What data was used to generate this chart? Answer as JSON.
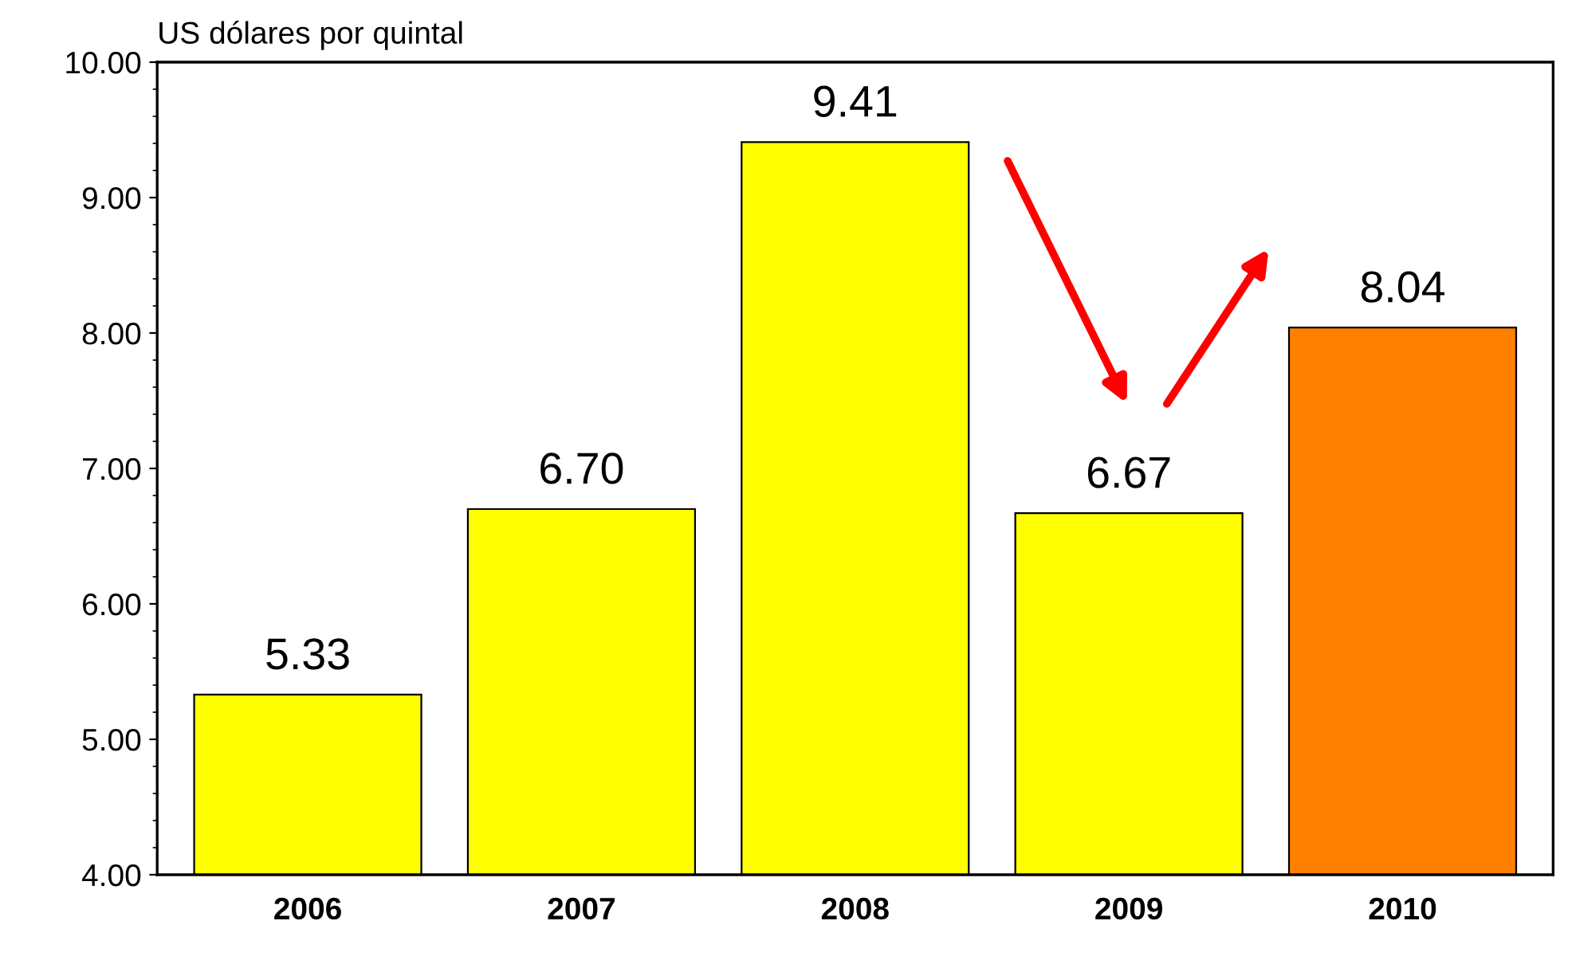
{
  "chart_data": {
    "type": "bar",
    "ylabel": "US dólares por quintal",
    "categories": [
      "2006",
      "2007",
      "2008",
      "2009",
      "2010"
    ],
    "values": [
      5.33,
      6.7,
      9.41,
      6.67,
      8.04
    ],
    "colors": [
      "#ffff00",
      "#ffff00",
      "#ffff00",
      "#ffff00",
      "#ff8000"
    ],
    "value_labels": [
      "5.33",
      "6.70",
      "9.41",
      "6.67",
      "8.04"
    ],
    "ylim": [
      4,
      10
    ],
    "yticks": [
      {
        "value": 4,
        "label": "4.00"
      },
      {
        "value": 5,
        "label": "5.00"
      },
      {
        "value": 6,
        "label": "6.00"
      },
      {
        "value": 7,
        "label": "7.00"
      },
      {
        "value": 8,
        "label": "8.00"
      },
      {
        "value": 9,
        "label": "9.00"
      },
      {
        "value": 10,
        "label": "10.00"
      }
    ],
    "grid": false,
    "legend": false
  }
}
